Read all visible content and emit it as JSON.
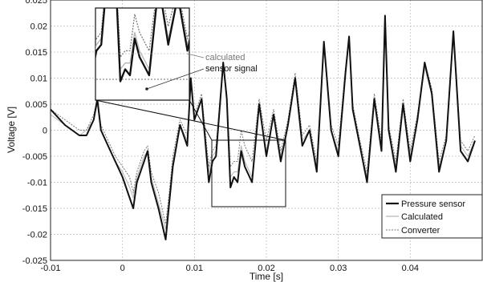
{
  "chart_data": {
    "type": "line",
    "xlabel": "Time [s]",
    "ylabel": "Voltage [V]",
    "xlim": [
      -0.01,
      0.05
    ],
    "ylim": [
      -0.025,
      0.025
    ],
    "x_ticks": [
      -0.01,
      0,
      0.01,
      0.02,
      0.03,
      0.04
    ],
    "x_tick_labels": [
      "-0.01",
      "0",
      "0.01",
      "0.02",
      "0.03",
      "0.04"
    ],
    "y_ticks": [
      -0.025,
      -0.02,
      -0.015,
      -0.01,
      -0.005,
      0,
      0.005,
      0.01,
      0.015,
      0.02,
      0.025
    ],
    "y_tick_labels": [
      "-0.025",
      "-0.02",
      "-0.015",
      "-0.01",
      "-0.005",
      "0",
      "0.005",
      "0.01",
      "0.015",
      "0.02",
      "0.025"
    ],
    "grid": true,
    "legend_position": "bottom-right",
    "series": [
      {
        "name": "Pressure sensor",
        "color": "#111111",
        "style": "solid",
        "x": [
          -0.01,
          -0.008,
          -0.006,
          -0.005,
          -0.004,
          -0.0035,
          -0.003,
          -0.002,
          -0.001,
          0.0,
          0.001,
          0.0015,
          0.002,
          0.003,
          0.0035,
          0.004,
          0.005,
          0.006,
          0.0065,
          0.007,
          0.008,
          0.009,
          0.0095,
          0.01,
          0.011,
          0.012,
          0.0125,
          0.013,
          0.014,
          0.0145,
          0.015,
          0.0155,
          0.016,
          0.0165,
          0.017,
          0.018,
          0.019,
          0.02,
          0.021,
          0.022,
          0.023,
          0.024,
          0.025,
          0.026,
          0.027,
          0.028,
          0.029,
          0.03,
          0.031,
          0.0315,
          0.032,
          0.033,
          0.034,
          0.035,
          0.036,
          0.0365,
          0.037,
          0.038,
          0.039,
          0.04,
          0.041,
          0.042,
          0.043,
          0.044,
          0.045,
          0.046,
          0.047,
          0.048,
          0.049
        ],
        "y": [
          0.004,
          0.001,
          -0.001,
          -0.001,
          0.002,
          0.006,
          0.0,
          -0.003,
          -0.006,
          -0.009,
          -0.013,
          -0.015,
          -0.01,
          -0.006,
          -0.004,
          -0.01,
          -0.015,
          -0.021,
          -0.014,
          -0.007,
          0.001,
          -0.003,
          0.01,
          0.002,
          0.006,
          -0.01,
          -0.006,
          -0.005,
          0.013,
          0.006,
          -0.011,
          -0.009,
          -0.01,
          -0.004,
          -0.007,
          -0.01,
          0.005,
          -0.005,
          0.003,
          -0.006,
          0.001,
          0.01,
          -0.003,
          0.0,
          -0.008,
          0.017,
          0.0,
          -0.005,
          0.011,
          0.018,
          0.004,
          -0.003,
          -0.01,
          0.006,
          -0.004,
          0.022,
          0.0,
          -0.008,
          0.005,
          -0.006,
          0.002,
          0.013,
          0.007,
          -0.008,
          -0.002,
          0.019,
          -0.004,
          -0.006,
          -0.002
        ]
      },
      {
        "name": "Calculated",
        "color": "#b5b5b5",
        "style": "solid",
        "x": [
          -0.01,
          -0.008,
          -0.006,
          -0.005,
          -0.004,
          -0.0035,
          -0.003,
          -0.002,
          -0.001,
          0.0,
          0.001,
          0.0015,
          0.002,
          0.003,
          0.0035,
          0.004,
          0.005,
          0.006,
          0.0065,
          0.007,
          0.008,
          0.009,
          0.0095,
          0.01,
          0.011,
          0.012,
          0.0125,
          0.013,
          0.014,
          0.0145,
          0.015,
          0.0155,
          0.016,
          0.0165,
          0.017,
          0.018,
          0.019,
          0.02,
          0.021,
          0.022,
          0.023,
          0.024,
          0.025,
          0.026,
          0.027,
          0.028,
          0.029,
          0.03,
          0.031,
          0.0315,
          0.032,
          0.033,
          0.034,
          0.035,
          0.036,
          0.0365,
          0.037,
          0.038,
          0.039,
          0.04,
          0.041,
          0.042,
          0.043,
          0.044,
          0.045,
          0.046,
          0.047,
          0.048,
          0.049
        ],
        "y": [
          0.003,
          0.001,
          -0.001,
          0.0,
          0.002,
          0.005,
          0.0,
          -0.003,
          -0.006,
          -0.008,
          -0.011,
          -0.013,
          -0.009,
          -0.005,
          -0.004,
          -0.009,
          -0.014,
          -0.019,
          -0.013,
          -0.006,
          0.001,
          -0.002,
          0.009,
          0.002,
          0.006,
          -0.008,
          -0.005,
          -0.004,
          0.012,
          0.006,
          -0.009,
          -0.008,
          -0.008,
          -0.003,
          -0.006,
          -0.009,
          0.005,
          -0.004,
          0.003,
          -0.005,
          0.001,
          0.01,
          -0.002,
          0.0,
          -0.007,
          0.016,
          0.0,
          -0.004,
          0.011,
          0.017,
          0.004,
          -0.003,
          -0.009,
          0.006,
          -0.003,
          0.021,
          0.0,
          -0.007,
          0.005,
          -0.005,
          0.002,
          0.012,
          0.007,
          -0.007,
          -0.002,
          0.018,
          -0.003,
          -0.005,
          -0.002
        ]
      },
      {
        "name": "Converter",
        "color": "#7a7a7a",
        "style": "dashed",
        "x": [
          -0.01,
          -0.008,
          -0.006,
          -0.005,
          -0.004,
          -0.0035,
          -0.003,
          -0.002,
          -0.001,
          0.0,
          0.001,
          0.0015,
          0.002,
          0.003,
          0.0035,
          0.004,
          0.005,
          0.006,
          0.0065,
          0.007,
          0.008,
          0.009,
          0.0095,
          0.01,
          0.011,
          0.012,
          0.0125,
          0.013,
          0.014,
          0.0145,
          0.015,
          0.0155,
          0.016,
          0.0165,
          0.017,
          0.018,
          0.019,
          0.02,
          0.021,
          0.022,
          0.023,
          0.024,
          0.025,
          0.026,
          0.027,
          0.028,
          0.029,
          0.03,
          0.031,
          0.0315,
          0.032,
          0.033,
          0.034,
          0.035,
          0.036,
          0.0365,
          0.037,
          0.038,
          0.039,
          0.04,
          0.041,
          0.042,
          0.043,
          0.044,
          0.045,
          0.046,
          0.047,
          0.048,
          0.049
        ],
        "y": [
          0.004,
          0.002,
          0.0,
          0.0,
          0.003,
          0.006,
          0.001,
          -0.002,
          -0.005,
          -0.007,
          -0.009,
          -0.012,
          -0.008,
          -0.004,
          -0.003,
          -0.008,
          -0.012,
          -0.018,
          -0.012,
          -0.005,
          0.002,
          -0.001,
          0.01,
          0.003,
          0.007,
          -0.007,
          -0.004,
          -0.003,
          0.013,
          0.007,
          -0.007,
          -0.006,
          -0.006,
          0.0,
          -0.003,
          -0.006,
          0.006,
          -0.002,
          0.004,
          -0.004,
          0.002,
          0.011,
          -0.001,
          0.001,
          -0.006,
          0.017,
          0.001,
          -0.003,
          0.012,
          0.018,
          0.005,
          -0.002,
          -0.008,
          0.007,
          -0.002,
          0.022,
          0.001,
          -0.006,
          0.006,
          -0.004,
          0.003,
          0.013,
          0.008,
          -0.006,
          -0.001,
          0.019,
          -0.002,
          -0.004,
          -0.001
        ]
      }
    ],
    "inset": {
      "zoom_xlim": [
        0.0124,
        0.0222
      ],
      "zoom_ylim": [
        -0.0138,
        0.001
      ],
      "annotations": [
        "calculated",
        "sensor signal"
      ]
    }
  }
}
